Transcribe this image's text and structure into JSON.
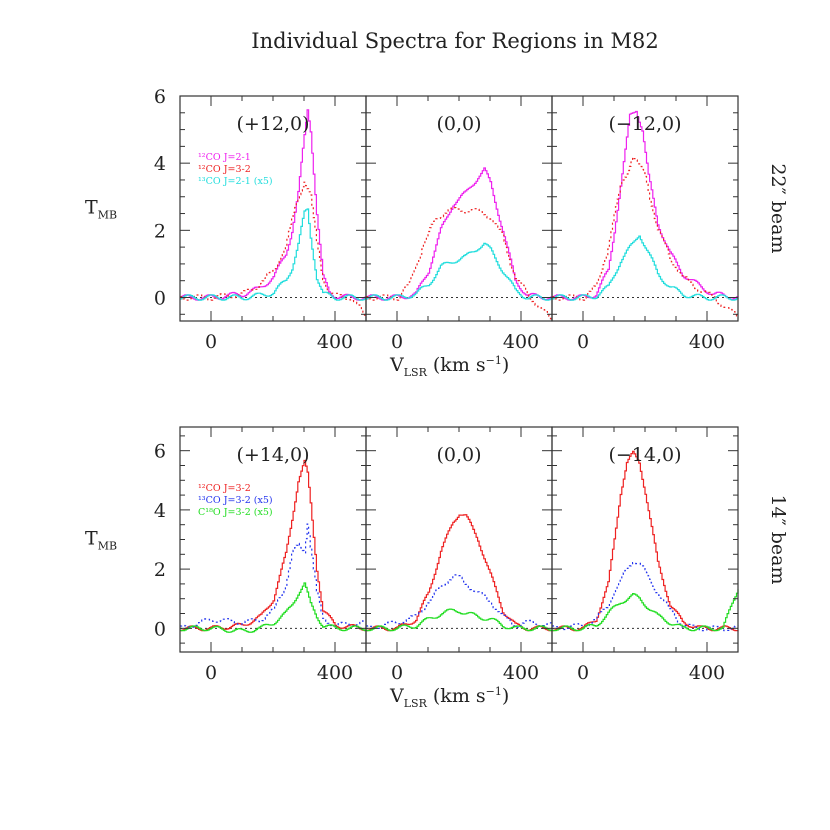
{
  "figure": {
    "title": "Individual Spectra for Regions in M82",
    "ylabel_main": "T",
    "ylabel_sub": "MB",
    "xlabel_main": "V",
    "xlabel_sub": "LSR",
    "xlabel_units_pre": " (km s",
    "xlabel_units_sup": "−1",
    "xlabel_units_post": ")"
  },
  "chart_data": [
    {
      "type": "line",
      "row": "top",
      "beam_label": "22″ beam",
      "xlim": [
        -100,
        500
      ],
      "ylim": [
        -0.7,
        6
      ],
      "x_ticks": [
        "0",
        "400"
      ],
      "y_ticks": [
        "0",
        "2",
        "4",
        "6"
      ],
      "legend": [
        {
          "text": "¹²CO J=2-1",
          "color": "#ee22ee"
        },
        {
          "text": "¹²CO J=3-2",
          "color": "#ee2222"
        },
        {
          "text": "¹³CO J=2-1 (x5)",
          "color": "#22dddd"
        }
      ],
      "panels": [
        {
          "label": "(+12,0)",
          "series": [
            {
              "name": "¹²CO J=2-1",
              "color": "#ee22ee",
              "style": "solid",
              "x": [
                -100,
                0,
                100,
                150,
                200,
                240,
                260,
                280,
                300,
                310,
                320,
                340,
                360,
                380,
                400,
                450,
                500
              ],
              "y": [
                0,
                0,
                0.1,
                0.25,
                0.6,
                1.3,
                2.0,
                3.1,
                4.8,
                5.6,
                5.0,
                2.5,
                0.6,
                0.15,
                0.05,
                0,
                0
              ]
            },
            {
              "name": "¹²CO J=3-2",
              "color": "#ee2222",
              "style": "dotted",
              "x": [
                -100,
                0,
                100,
                150,
                200,
                240,
                260,
                280,
                300,
                320,
                340,
                360,
                380,
                400,
                450,
                500
              ],
              "y": [
                0,
                0,
                0.1,
                0.35,
                0.8,
                1.5,
                2.3,
                3.0,
                3.5,
                3.0,
                1.6,
                0.6,
                0.15,
                0.05,
                0,
                -0.6
              ]
            },
            {
              "name": "¹³CO J=2-1 (x5)",
              "color": "#22dddd",
              "style": "solid",
              "x": [
                -100,
                0,
                100,
                150,
                200,
                240,
                260,
                280,
                300,
                310,
                320,
                340,
                360,
                400,
                500
              ],
              "y": [
                0,
                0,
                0,
                0.05,
                0.15,
                0.5,
                0.9,
                1.6,
                2.5,
                2.6,
                1.8,
                0.6,
                0.1,
                0,
                0
              ]
            }
          ]
        },
        {
          "label": "(0,0)",
          "series": [
            {
              "name": "¹²CO J=2-1",
              "color": "#ee22ee",
              "style": "solid",
              "x": [
                -100,
                0,
                60,
                100,
                140,
                180,
                220,
                260,
                280,
                300,
                340,
                380,
                420,
                500
              ],
              "y": [
                0,
                0,
                0.1,
                0.8,
                2.0,
                2.8,
                3.1,
                3.6,
                3.8,
                3.4,
                2.0,
                0.5,
                0.05,
                0
              ]
            },
            {
              "name": "¹²CO J=3-2",
              "color": "#ee2222",
              "style": "dotted",
              "x": [
                -100,
                0,
                40,
                80,
                120,
                160,
                200,
                240,
                280,
                300,
                340,
                380,
                420,
                500
              ],
              "y": [
                0,
                0,
                0.4,
                1.5,
                2.3,
                2.6,
                2.6,
                2.6,
                2.5,
                2.4,
                1.8,
                0.6,
                0.1,
                -0.7
              ]
            },
            {
              "name": "¹³CO J=2-1 (x5)",
              "color": "#22dddd",
              "style": "solid",
              "x": [
                -100,
                0,
                60,
                100,
                140,
                180,
                220,
                260,
                280,
                300,
                340,
                380,
                420,
                500
              ],
              "y": [
                0,
                0,
                0.1,
                0.4,
                0.9,
                1.1,
                1.2,
                1.5,
                1.6,
                1.4,
                0.8,
                0.2,
                0,
                0
              ]
            }
          ]
        },
        {
          "label": "(−12,0)",
          "series": [
            {
              "name": "¹²CO J=2-1",
              "color": "#ee22ee",
              "style": "solid",
              "x": [
                -100,
                0,
                40,
                80,
                100,
                130,
                150,
                170,
                190,
                210,
                240,
                280,
                320,
                380,
                420,
                500
              ],
              "y": [
                0,
                0,
                0.1,
                0.8,
                2.0,
                4.0,
                5.4,
                5.6,
                5.0,
                3.6,
                2.2,
                1.3,
                0.7,
                0.3,
                0.1,
                0
              ]
            },
            {
              "name": "¹²CO J=3-2",
              "color": "#ee2222",
              "style": "dotted",
              "x": [
                -100,
                0,
                40,
                80,
                120,
                160,
                200,
                240,
                280,
                320,
                380,
                420,
                500
              ],
              "y": [
                0,
                0,
                0.3,
                1.5,
                3.3,
                4.2,
                3.6,
                2.0,
                1.2,
                0.6,
                0.2,
                0,
                -0.6
              ]
            },
            {
              "name": "¹³CO J=2-1 (x5)",
              "color": "#22dddd",
              "style": "solid",
              "x": [
                -100,
                0,
                40,
                80,
                120,
                160,
                180,
                200,
                240,
                280,
                320,
                380,
                500
              ],
              "y": [
                0,
                0,
                0.05,
                0.3,
                1.1,
                1.6,
                1.9,
                1.5,
                0.7,
                0.3,
                0.1,
                0,
                0
              ]
            }
          ]
        }
      ]
    },
    {
      "type": "line",
      "row": "bottom",
      "beam_label": "14″ beam",
      "xlim": [
        -100,
        500
      ],
      "ylim": [
        -0.8,
        6.8
      ],
      "x_ticks": [
        "0",
        "400"
      ],
      "y_ticks": [
        "0",
        "2",
        "4",
        "6"
      ],
      "legend": [
        {
          "text": "¹²CO J=3-2",
          "color": "#ee2222"
        },
        {
          "text": "¹³CO J=3-2 (x5)",
          "color": "#2233ee"
        },
        {
          "text": "C¹⁸O J=3-2 (x5)",
          "color": "#22dd22"
        }
      ],
      "panels": [
        {
          "label": "(+14,0)",
          "series": [
            {
              "name": "¹²CO J=3-2",
              "color": "#ee2222",
              "style": "solid",
              "x": [
                -100,
                0,
                100,
                160,
                200,
                240,
                260,
                280,
                300,
                310,
                320,
                340,
                360,
                400,
                500
              ],
              "y": [
                0,
                0,
                0.1,
                0.4,
                1.0,
                2.5,
                3.7,
                5.0,
                5.6,
                5.2,
                4.2,
                2.0,
                0.6,
                0.1,
                0
              ]
            },
            {
              "name": "¹³CO J=3-2 (x5)",
              "color": "#2233ee",
              "style": "dotted",
              "x": [
                -100,
                0,
                100,
                160,
                200,
                240,
                260,
                280,
                300,
                310,
                320,
                340,
                360,
                400,
                500
              ],
              "y": [
                0,
                0.3,
                0.2,
                0.3,
                0.6,
                1.5,
                2.5,
                2.8,
                2.6,
                3.6,
                2.8,
                1.2,
                0.3,
                0.1,
                0.2
              ]
            },
            {
              "name": "C¹⁸O J=3-2 (x5)",
              "color": "#22dd22",
              "style": "solid",
              "x": [
                -100,
                0,
                100,
                160,
                200,
                240,
                260,
                280,
                300,
                320,
                340,
                360,
                400,
                500
              ],
              "y": [
                0,
                0,
                -0.1,
                0,
                0.2,
                0.5,
                0.8,
                1.2,
                1.5,
                0.8,
                0.4,
                0.1,
                0,
                0
              ]
            }
          ]
        },
        {
          "label": "(0,0)",
          "series": [
            {
              "name": "¹²CO J=3-2",
              "color": "#ee2222",
              "style": "solid",
              "x": [
                -100,
                0,
                60,
                100,
                140,
                180,
                200,
                220,
                260,
                300,
                340,
                380,
                420,
                500
              ],
              "y": [
                0,
                0,
                0.3,
                1.2,
                2.6,
                3.6,
                3.9,
                3.8,
                3.0,
                1.8,
                0.6,
                0.1,
                0,
                0
              ]
            },
            {
              "name": "¹³CO J=3-2 (x5)",
              "color": "#2233ee",
              "style": "dotted",
              "x": [
                -100,
                0,
                60,
                100,
                140,
                180,
                200,
                220,
                260,
                300,
                340,
                380,
                420,
                500
              ],
              "y": [
                0,
                0.2,
                0.4,
                0.9,
                1.4,
                1.8,
                1.7,
                1.5,
                1.2,
                0.9,
                0.4,
                0.1,
                0.2,
                0.1
              ]
            },
            {
              "name": "C¹⁸O J=3-2 (x5)",
              "color": "#22dd22",
              "style": "solid",
              "x": [
                -100,
                0,
                60,
                100,
                140,
                180,
                200,
                220,
                260,
                300,
                340,
                380,
                420,
                500
              ],
              "y": [
                0,
                0,
                0.1,
                0.3,
                0.5,
                0.6,
                0.6,
                0.5,
                0.4,
                0.3,
                0.1,
                0,
                0,
                0
              ]
            }
          ]
        },
        {
          "label": "(−14,0)",
          "series": [
            {
              "name": "¹²CO J=3-2",
              "color": "#ee2222",
              "style": "solid",
              "x": [
                -100,
                0,
                40,
                80,
                100,
                120,
                140,
                160,
                180,
                200,
                240,
                280,
                320,
                380,
                500
              ],
              "y": [
                0,
                0,
                0.3,
                1.5,
                3.0,
                4.6,
                5.6,
                5.9,
                5.6,
                4.6,
                2.2,
                0.8,
                0.2,
                0,
                0
              ]
            },
            {
              "name": "¹³CO J=3-2 (x5)",
              "color": "#2233ee",
              "style": "dotted",
              "x": [
                -100,
                0,
                40,
                80,
                120,
                140,
                160,
                180,
                200,
                240,
                280,
                320,
                380,
                500
              ],
              "y": [
                0,
                0.1,
                0.3,
                0.8,
                1.6,
                2.0,
                2.3,
                2.2,
                1.9,
                1.2,
                0.6,
                0.1,
                0,
                0
              ]
            },
            {
              "name": "C¹⁸O J=3-2 (x5)",
              "color": "#22dd22",
              "style": "solid",
              "x": [
                -100,
                0,
                40,
                80,
                120,
                140,
                160,
                180,
                200,
                240,
                280,
                320,
                380,
                450,
                500
              ],
              "y": [
                0,
                0,
                0.1,
                0.5,
                0.9,
                1.0,
                1.1,
                1.0,
                0.8,
                0.4,
                0.2,
                0,
                0,
                0,
                1.4
              ]
            }
          ]
        }
      ]
    }
  ]
}
